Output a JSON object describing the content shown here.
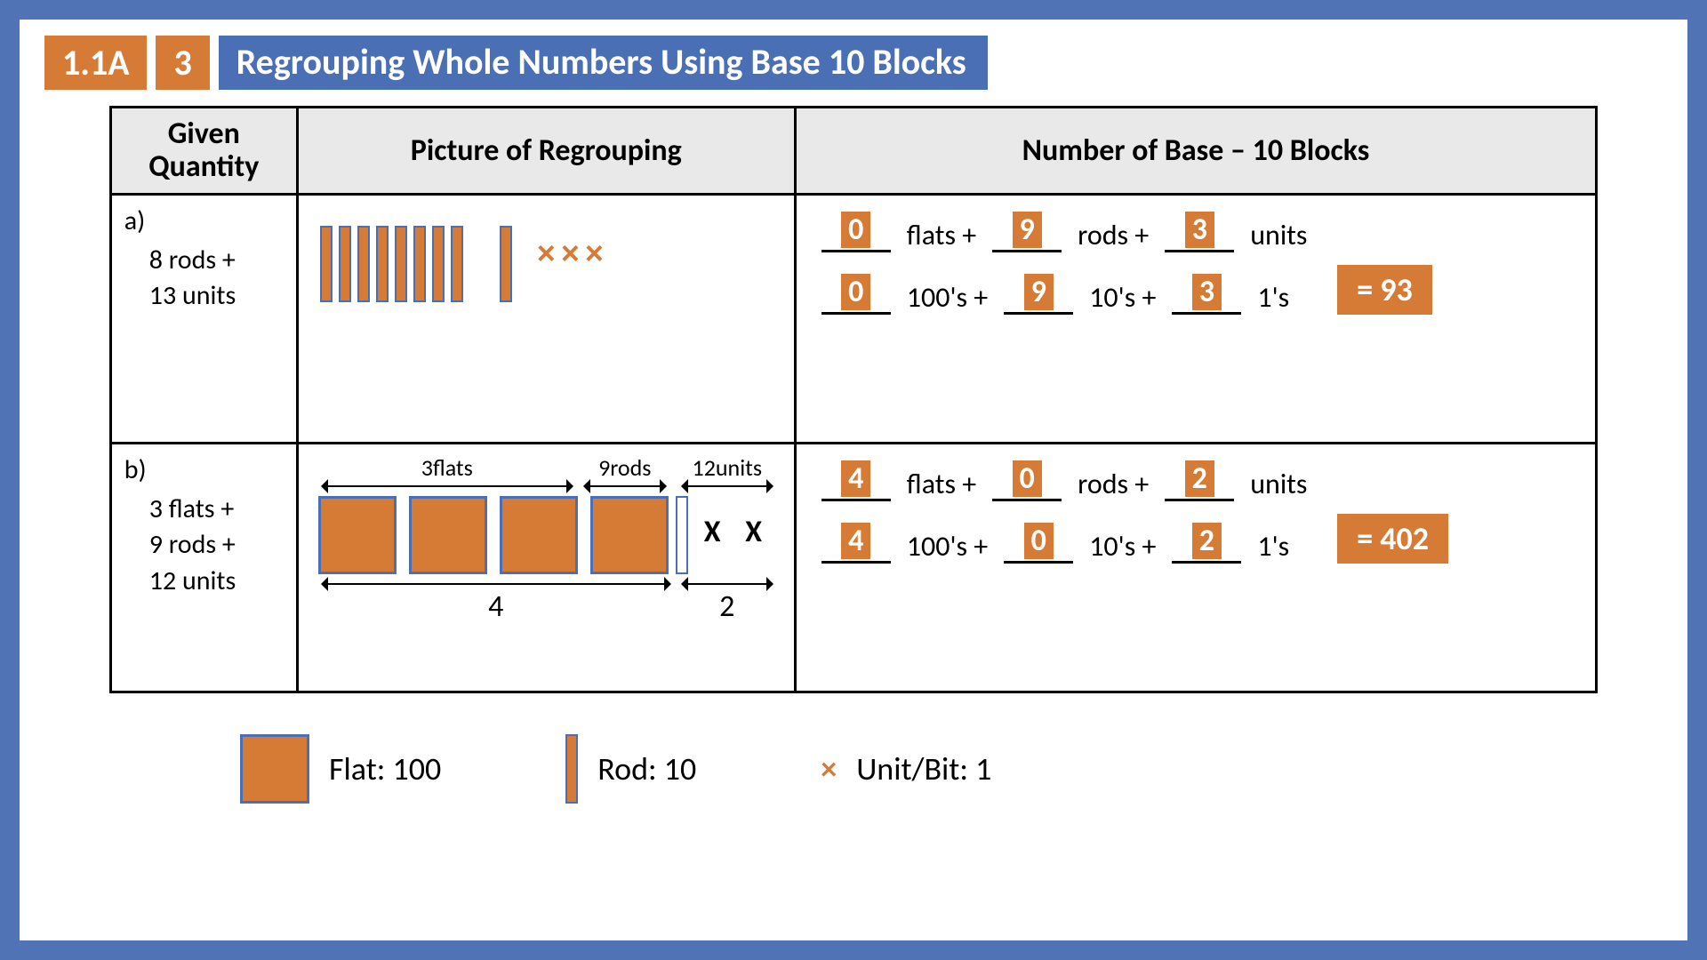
{
  "colors": {
    "border": "#5073b6",
    "accent": "#d57b36",
    "accent_border": "#4a6fb4",
    "header_bg": "#e9e9e9"
  },
  "header": {
    "code": "1.1A",
    "num": "3",
    "title": "Regrouping Whole Numbers Using Base 10 Blocks"
  },
  "columns": {
    "c1": "Given\nQuantity",
    "c2": "Picture of Regrouping",
    "c3": "Number of Base – 10 Blocks"
  },
  "labels": {
    "flats": "flats +",
    "rods": "rods +",
    "units": "units",
    "h": "100's +",
    "t": "10's +",
    "o": "1's"
  },
  "rowA": {
    "tag": "a)",
    "given_line1": "8 rods +",
    "given_line2": "13 units",
    "pic": {
      "rods_main": 8,
      "rods_extra": 1,
      "units": 3
    },
    "vals": {
      "flats": "0",
      "rods": "9",
      "units": "3",
      "h": "0",
      "t": "9",
      "o": "3"
    },
    "result": "= 93"
  },
  "rowB": {
    "tag": "b)",
    "given_line1": "3 flats +",
    "given_line2": "9 rods +",
    "given_line3": "12 units",
    "annot": {
      "top1": "3flats",
      "top2": "9rods",
      "top3": "12units",
      "bot1": "4",
      "bot2": "2"
    },
    "pic": {
      "flats": 4,
      "units": 2
    },
    "vals": {
      "flats": "4",
      "rods": "0",
      "units": "2",
      "h": "4",
      "t": "0",
      "o": "2"
    },
    "result": "= 402"
  },
  "legend": {
    "flat": "Flat: 100",
    "rod": "Rod: 10",
    "unit": "Unit/Bit: 1",
    "unit_symbol": "×"
  }
}
